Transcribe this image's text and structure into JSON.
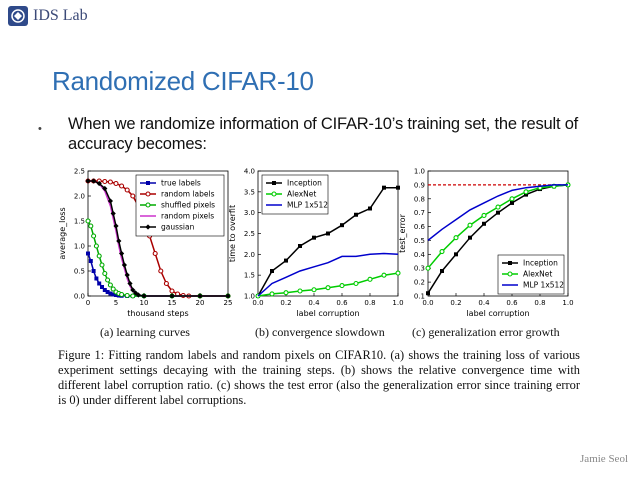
{
  "header": {
    "lab_name": "IDS Lab"
  },
  "slide": {
    "title": "Randomized CIFAR-10",
    "bullet_symbol": "•",
    "bullet_text": "When we randomize information of CIFAR-10’s training set, the result of accuracy becomes:",
    "author": "Jamie Seol"
  },
  "figure": {
    "subcaptions": [
      "(a) learning curves",
      "(b) convergence slowdown",
      "(c) generalization error growth"
    ],
    "caption": "Figure 1: Fitting random labels and random pixels on CIFAR10. (a) shows the training loss of various experiment settings decaying with the training steps. (b) shows the relative convergence time with different label corruption ratio. (c) shows the test error (also the generalization error since training error is 0) under different label corruptions."
  },
  "chart_data": [
    {
      "type": "line",
      "xlabel": "thousand steps",
      "ylabel": "average_loss",
      "xlim": [
        0,
        25
      ],
      "ylim": [
        0,
        2.5
      ],
      "xticks": [
        "0",
        "5",
        "10",
        "15",
        "20",
        "25"
      ],
      "yticks": [
        "0.0",
        "0.5",
        "1.0",
        "1.5",
        "2.0",
        "2.5"
      ],
      "legend_position": "top-right",
      "series": [
        {
          "name": "true labels",
          "color": "#0000aa",
          "marker": "square",
          "x": [
            0,
            0.5,
            1,
            1.5,
            2,
            2.5,
            3,
            3.5,
            4,
            4.5,
            5,
            5.5,
            6,
            7,
            8,
            10,
            15,
            20,
            25
          ],
          "y": [
            0.85,
            0.7,
            0.5,
            0.35,
            0.25,
            0.18,
            0.12,
            0.08,
            0.05,
            0.03,
            0.02,
            0.01,
            0.005,
            0,
            0,
            0,
            0,
            0,
            0
          ]
        },
        {
          "name": "random labels",
          "color": "#aa0000",
          "marker": "circle",
          "x": [
            0,
            1,
            2,
            3,
            4,
            5,
            6,
            7,
            8,
            9,
            10,
            11,
            12,
            13,
            14,
            15,
            16,
            17,
            18,
            20,
            25
          ],
          "y": [
            2.3,
            2.3,
            2.3,
            2.29,
            2.28,
            2.25,
            2.2,
            2.12,
            2.0,
            1.8,
            1.55,
            1.2,
            0.85,
            0.5,
            0.25,
            0.1,
            0.04,
            0.01,
            0,
            0,
            0
          ]
        },
        {
          "name": "shuffled pixels",
          "color": "#00aa00",
          "marker": "circle",
          "x": [
            0,
            0.5,
            1,
            1.5,
            2,
            2.5,
            3,
            3.5,
            4,
            4.5,
            5,
            5.5,
            6,
            7,
            8,
            10,
            15,
            20,
            25
          ],
          "y": [
            1.5,
            1.4,
            1.2,
            1.0,
            0.8,
            0.62,
            0.45,
            0.32,
            0.22,
            0.14,
            0.08,
            0.05,
            0.03,
            0.01,
            0,
            0,
            0,
            0,
            0
          ]
        },
        {
          "name": "random pixels",
          "color": "#cc33cc",
          "marker": "none",
          "x": [
            0,
            1,
            2,
            3,
            4,
            4.5,
            5,
            5.5,
            6,
            6.5,
            7,
            7.5,
            8,
            8.5,
            9,
            10,
            15,
            20,
            25
          ],
          "y": [
            2.3,
            2.3,
            2.25,
            2.1,
            1.8,
            1.55,
            1.3,
            1.0,
            0.75,
            0.55,
            0.35,
            0.2,
            0.1,
            0.05,
            0.02,
            0,
            0,
            0,
            0
          ]
        },
        {
          "name": "gaussian",
          "color": "#000000",
          "marker": "diamond",
          "x": [
            0,
            1,
            2,
            3,
            4,
            4.5,
            5,
            5.5,
            6,
            6.5,
            7,
            7.5,
            8,
            8.5,
            9,
            10,
            15,
            20,
            25
          ],
          "y": [
            2.3,
            2.3,
            2.25,
            2.15,
            1.9,
            1.65,
            1.4,
            1.1,
            0.85,
            0.62,
            0.42,
            0.25,
            0.12,
            0.06,
            0.02,
            0,
            0,
            0,
            0
          ]
        }
      ]
    },
    {
      "type": "line",
      "xlabel": "label corruption",
      "ylabel": "time to overfit",
      "xlim": [
        0,
        1.0
      ],
      "ylim": [
        1.0,
        4.0
      ],
      "xticks": [
        "0.0",
        "0.2",
        "0.4",
        "0.6",
        "0.8",
        "1.0"
      ],
      "yticks": [
        "1.0",
        "1.5",
        "2.0",
        "2.5",
        "3.0",
        "3.5",
        "4.0"
      ],
      "legend_position": "top-left",
      "series": [
        {
          "name": "Inception",
          "color": "#000000",
          "marker": "square",
          "x": [
            0,
            0.1,
            0.2,
            0.3,
            0.4,
            0.5,
            0.6,
            0.7,
            0.8,
            0.9,
            1.0
          ],
          "y": [
            1.0,
            1.6,
            1.85,
            2.2,
            2.4,
            2.5,
            2.7,
            2.95,
            3.1,
            3.6,
            3.6
          ]
        },
        {
          "name": "AlexNet",
          "color": "#00cc00",
          "marker": "circle",
          "x": [
            0,
            0.1,
            0.2,
            0.3,
            0.4,
            0.5,
            0.6,
            0.7,
            0.8,
            0.9,
            1.0
          ],
          "y": [
            1.0,
            1.05,
            1.08,
            1.12,
            1.15,
            1.2,
            1.25,
            1.3,
            1.4,
            1.5,
            1.55
          ]
        },
        {
          "name": "MLP 1x512",
          "color": "#0000cc",
          "marker": "none",
          "x": [
            0,
            0.1,
            0.2,
            0.3,
            0.4,
            0.5,
            0.6,
            0.7,
            0.8,
            0.9,
            1.0
          ],
          "y": [
            1.0,
            1.3,
            1.45,
            1.6,
            1.7,
            1.8,
            1.95,
            1.95,
            2.0,
            2.02,
            2.0
          ]
        }
      ]
    },
    {
      "type": "line",
      "xlabel": "label corruption",
      "ylabel": "test_error",
      "xlim": [
        0,
        1.0
      ],
      "ylim": [
        0.1,
        1.0
      ],
      "xticks": [
        "0.0",
        "0.2",
        "0.4",
        "0.6",
        "0.8",
        "1.0"
      ],
      "yticks": [
        "0.1",
        "0.2",
        "0.3",
        "0.4",
        "0.5",
        "0.6",
        "0.7",
        "0.8",
        "0.9",
        "1.0"
      ],
      "legend_position": "bottom-right",
      "reference_line": {
        "y": 0.9,
        "style": "dashed",
        "color": "#cc0000"
      },
      "series": [
        {
          "name": "Inception",
          "color": "#000000",
          "marker": "square",
          "x": [
            0,
            0.1,
            0.2,
            0.3,
            0.4,
            0.5,
            0.6,
            0.7,
            0.8,
            0.9,
            1.0
          ],
          "y": [
            0.12,
            0.28,
            0.4,
            0.52,
            0.62,
            0.7,
            0.77,
            0.83,
            0.87,
            0.89,
            0.9
          ]
        },
        {
          "name": "AlexNet",
          "color": "#00cc00",
          "marker": "circle",
          "x": [
            0,
            0.1,
            0.2,
            0.3,
            0.4,
            0.5,
            0.6,
            0.7,
            0.8,
            0.9,
            1.0
          ],
          "y": [
            0.3,
            0.42,
            0.52,
            0.61,
            0.68,
            0.74,
            0.8,
            0.85,
            0.88,
            0.89,
            0.9
          ]
        },
        {
          "name": "MLP 1x512",
          "color": "#0000cc",
          "marker": "none",
          "x": [
            0,
            0.1,
            0.2,
            0.3,
            0.4,
            0.5,
            0.6,
            0.7,
            0.8,
            0.9,
            1.0
          ],
          "y": [
            0.5,
            0.58,
            0.65,
            0.72,
            0.77,
            0.82,
            0.86,
            0.88,
            0.89,
            0.9,
            0.9
          ]
        }
      ]
    }
  ]
}
